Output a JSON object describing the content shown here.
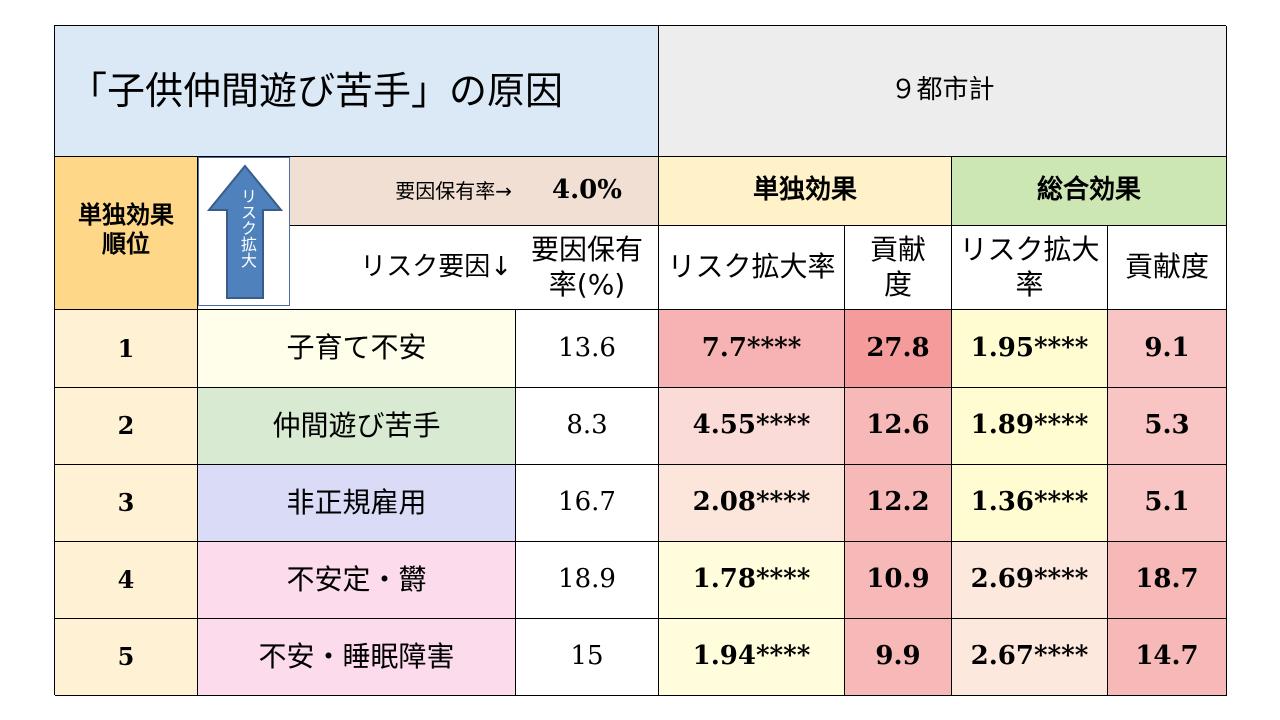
{
  "title": "「子供仲間遊び苦手」の原因",
  "region": "９都市計",
  "rank_header": "単独効果順位",
  "arrow_label": "リスク拡大",
  "prevalence_label": "要因保有率→",
  "prevalence_value": "4.0%",
  "single_header": "単独効果",
  "total_header": "総合効果",
  "risk_factor_label": "リスク要因↓",
  "sub_headers": {
    "prevalence": "要因保有率(%)",
    "risk_ratio": "リスク拡大率",
    "contribution": "貢献度",
    "total_risk_ratio": "リスク拡大率",
    "total_contribution": "貢献度"
  },
  "rows": [
    {
      "rank": "1",
      "factor": "子育て不安",
      "prevalence": "13.6",
      "single_rr": "7.7****",
      "single_contrib": "27.8",
      "total_rr": "1.95****",
      "total_contrib": "9.1"
    },
    {
      "rank": "2",
      "factor": "仲間遊び苦手",
      "prevalence": "8.3",
      "single_rr": "4.55****",
      "single_contrib": "12.6",
      "total_rr": "1.89****",
      "total_contrib": "5.3"
    },
    {
      "rank": "3",
      "factor": "非正規雇用",
      "prevalence": "16.7",
      "single_rr": "2.08****",
      "single_contrib": "12.2",
      "total_rr": "1.36****",
      "total_contrib": "5.1"
    },
    {
      "rank": "4",
      "factor": "不安定・欝",
      "prevalence": "18.9",
      "single_rr": "1.78****",
      "single_contrib": "10.9",
      "total_rr": "2.69****",
      "total_contrib": "18.7"
    },
    {
      "rank": "5",
      "factor": "不安・睡眠障害",
      "prevalence": "15",
      "single_rr": "1.94****",
      "single_contrib": "9.9",
      "total_rr": "2.67****",
      "total_contrib": "14.7"
    }
  ],
  "colors": {
    "factor_bg": [
      "#fefeea",
      "#d9ead3",
      "#d9dbf7",
      "#fcdcec",
      "#fcdcec"
    ],
    "single_rr_bg": [
      "#f7b3b3",
      "#fadbd8",
      "#fce6dc",
      "#fffddb",
      "#fffddb"
    ],
    "single_contrib_bg": [
      "#f59b9b",
      "#f7b8b8",
      "#f7b8b8",
      "#f7b8b8",
      "#f7b8b8"
    ],
    "total_rr_bg": [
      "#fffcd2",
      "#fffcd2",
      "#fffcd2",
      "#fce8dc",
      "#fce8dc"
    ],
    "total_contrib_bg": [
      "#f9c4c4",
      "#f9c4c4",
      "#f9c4c4",
      "#f7b8b8",
      "#f7b8b8"
    ]
  }
}
